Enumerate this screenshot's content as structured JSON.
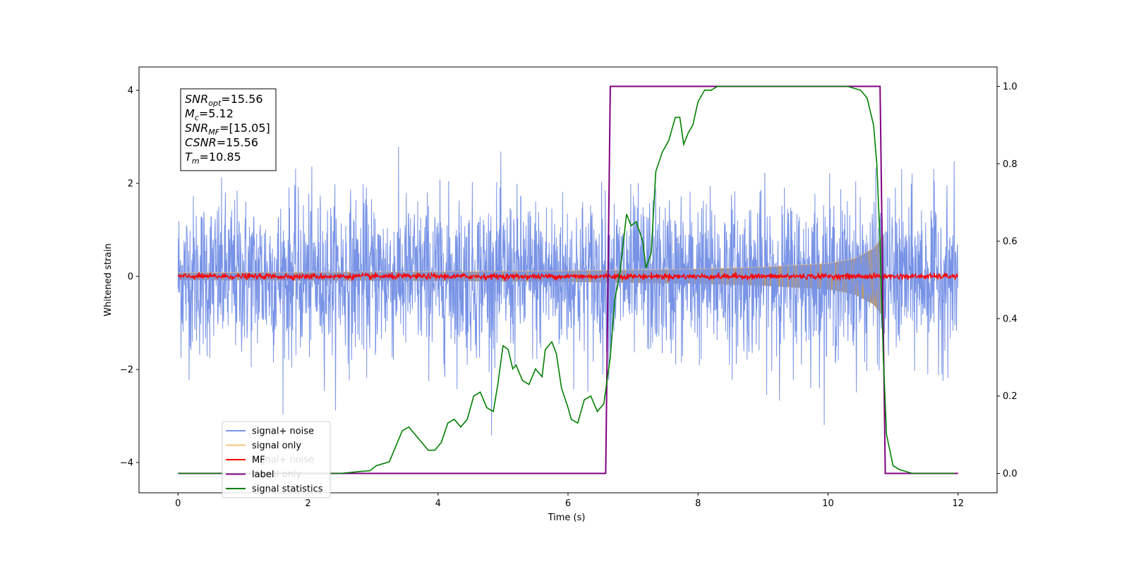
{
  "chart_data": {
    "type": "line",
    "xlabel": "Time (s)",
    "ylabel": "Whitened strain",
    "xlim": [
      -0.6,
      12.6
    ],
    "ylim": [
      -4.65,
      4.5
    ],
    "y2lim": [
      -0.05,
      1.05
    ],
    "x_ticks": [
      0,
      2,
      4,
      6,
      8,
      10,
      12
    ],
    "y_ticks": [
      -4,
      -2,
      0,
      2,
      4
    ],
    "y2_ticks": [
      0.0,
      0.2,
      0.4,
      0.6,
      0.8,
      1.0
    ],
    "grid": false,
    "legend_position": "lower-left",
    "annotation": {
      "lines": [
        {
          "name": "SNR",
          "sub": "opt",
          "value": "=15.56"
        },
        {
          "name": "M",
          "sub": "c",
          "value": "=5.12"
        },
        {
          "name": "SNR",
          "sub": "MF",
          "value": "=[15.05]"
        },
        {
          "name": "CSNR",
          "sub": "",
          "value": "=15.56"
        },
        {
          "name": "T",
          "sub": "m",
          "value": "=10.85"
        }
      ]
    },
    "series": [
      {
        "name": "signal+ noise",
        "color": "#7893e6",
        "axis": "left",
        "x_range": [
          0,
          12
        ],
        "noise_sigma": 0.85,
        "approx_extent": [
          -3.8,
          4.1
        ]
      },
      {
        "name": "signal only",
        "color": "#f5c27a",
        "axis": "left",
        "x_range": [
          0,
          10.85
        ],
        "envelope": {
          "x": [
            0,
            4,
            6,
            8,
            9,
            10,
            10.4,
            10.7,
            10.85
          ],
          "y": [
            0.08,
            0.1,
            0.12,
            0.16,
            0.2,
            0.28,
            0.38,
            0.6,
            0.88
          ]
        }
      },
      {
        "name": "MF",
        "color": "#ff0000",
        "axis": "left",
        "x_range": [
          0,
          12
        ],
        "noise_sigma": 0.03
      },
      {
        "name": "label",
        "color": "#800080",
        "axis": "right",
        "x": [
          0,
          6.58,
          6.58,
          6.65,
          10.8,
          10.88,
          12
        ],
        "y": [
          0,
          0,
          0,
          1,
          1,
          0,
          0
        ]
      },
      {
        "name": "signal statistics",
        "color": "#008000",
        "axis": "right",
        "x": [
          0,
          0.5,
          1.0,
          1.5,
          2.0,
          2.5,
          2.8,
          2.95,
          3.05,
          3.15,
          3.25,
          3.35,
          3.45,
          3.55,
          3.65,
          3.75,
          3.85,
          3.95,
          4.05,
          4.15,
          4.25,
          4.35,
          4.45,
          4.55,
          4.65,
          4.75,
          4.85,
          4.92,
          5.0,
          5.08,
          5.15,
          5.2,
          5.3,
          5.4,
          5.5,
          5.6,
          5.65,
          5.75,
          5.82,
          5.9,
          6.0,
          6.05,
          6.15,
          6.25,
          6.35,
          6.45,
          6.55,
          6.65,
          6.72,
          6.8,
          6.9,
          6.97,
          7.05,
          7.15,
          7.2,
          7.28,
          7.35,
          7.45,
          7.55,
          7.65,
          7.72,
          7.78,
          7.85,
          7.92,
          8.0,
          8.1,
          8.2,
          8.3,
          8.5,
          8.8,
          9.0,
          9.3,
          9.5,
          9.8,
          10.0,
          10.3,
          10.5,
          10.6,
          10.7,
          10.75,
          10.8,
          10.85,
          10.9,
          11.0,
          11.1,
          11.3,
          11.5,
          11.95
        ],
        "y": [
          0.0,
          0.0,
          0.0,
          0.0,
          0.0,
          0.0,
          0.005,
          0.007,
          0.02,
          0.025,
          0.03,
          0.07,
          0.11,
          0.12,
          0.1,
          0.08,
          0.06,
          0.06,
          0.08,
          0.13,
          0.14,
          0.12,
          0.14,
          0.2,
          0.21,
          0.17,
          0.16,
          0.23,
          0.33,
          0.32,
          0.27,
          0.28,
          0.24,
          0.23,
          0.27,
          0.25,
          0.32,
          0.34,
          0.31,
          0.22,
          0.17,
          0.14,
          0.13,
          0.19,
          0.2,
          0.16,
          0.18,
          0.3,
          0.45,
          0.52,
          0.67,
          0.64,
          0.65,
          0.6,
          0.53,
          0.57,
          0.78,
          0.83,
          0.86,
          0.92,
          0.92,
          0.85,
          0.88,
          0.9,
          0.96,
          0.99,
          0.99,
          1.0,
          1.0,
          1.0,
          1.0,
          1.0,
          1.0,
          1.0,
          1.0,
          1.0,
          0.99,
          0.97,
          0.9,
          0.8,
          0.6,
          0.3,
          0.1,
          0.02,
          0.01,
          0.0,
          0.0,
          0.0
        ]
      }
    ]
  },
  "legend": {
    "items": [
      {
        "label": "signal+ noise",
        "color": "#7893e6"
      },
      {
        "label": "signal only",
        "color": "#f5c27a"
      },
      {
        "label": "MF",
        "color": "#ff0000"
      },
      {
        "label": "label",
        "color": "#800080"
      },
      {
        "label": "signal statistics",
        "color": "#008000"
      }
    ],
    "ghost_items": [
      {
        "label": "signal+ noise"
      },
      {
        "label": "signal only"
      }
    ]
  }
}
